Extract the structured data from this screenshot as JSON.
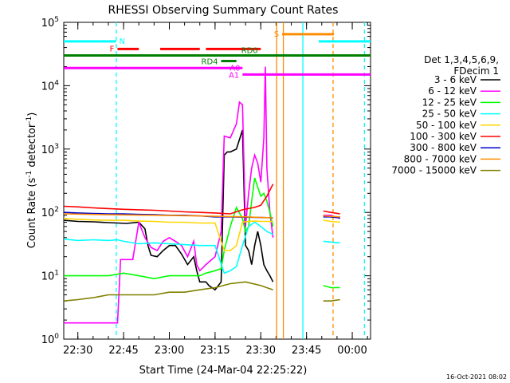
{
  "chart_data": {
    "type": "line",
    "title": "RHESSI Observing Summary Count Rates",
    "xlabel": "Start Time (24-Mar-04 22:25:22)",
    "ylabel_main": "Count Rate (s",
    "ylabel_sup": "-1",
    "ylabel_mid": " detector",
    "ylabel_sup2": "-1",
    "ylabel_end": ")",
    "footer": "16-Oct-2021 08:02",
    "x_ticks": [
      "22:30",
      "22:45",
      "23:00",
      "23:15",
      "23:30",
      "23:45",
      "00:00"
    ],
    "x_tick_minutes": [
      30,
      45,
      60,
      75,
      90,
      105,
      120
    ],
    "xlim_minutes": [
      25.37,
      126
    ],
    "y_scale": "log",
    "ylim": [
      1,
      100000
    ],
    "y_ticks": [
      {
        "base": "10",
        "exp": "0",
        "value": 1
      },
      {
        "base": "10",
        "exp": "1",
        "value": 10
      },
      {
        "base": "10",
        "exp": "2",
        "value": 100
      },
      {
        "base": "10",
        "exp": "3",
        "value": 1000
      },
      {
        "base": "10",
        "exp": "4",
        "value": 10000
      },
      {
        "base": "10",
        "exp": "5",
        "value": 100000
      }
    ],
    "legend": {
      "placement": "right",
      "header": [
        "Det 1,3,4,5,6,9,",
        "FDecim 1"
      ],
      "entries": [
        {
          "label": "3 - 6 keV",
          "color": "#000000"
        },
        {
          "label": "6 - 12 keV",
          "color": "#ff00ff"
        },
        {
          "label": "12 - 25 keV",
          "color": "#00ff00"
        },
        {
          "label": "25 - 50 keV",
          "color": "#00ffff"
        },
        {
          "label": "50 - 100 keV",
          "color": "#ffd700"
        },
        {
          "label": "100 - 300 keV",
          "color": "#ff0000"
        },
        {
          "label": "300 - 800 keV",
          "color": "#0000cd"
        },
        {
          "label": "800 - 7000 keV",
          "color": "#ff8c00"
        },
        {
          "label": "7000 - 15000 keV",
          "color": "#808000"
        }
      ]
    },
    "flag_bars": [
      {
        "label": "N",
        "color": "#00ffff",
        "y": 50000,
        "segments": [
          [
            25.37,
            42.5
          ],
          [
            109,
            126
          ]
        ]
      },
      {
        "label": "F",
        "color": "#ff0000",
        "y": 38000,
        "segments": [
          [
            43,
            50
          ],
          [
            57,
            70
          ],
          [
            72,
            90
          ]
        ]
      },
      {
        "label": "RD0",
        "color": "#008000",
        "y": 30000,
        "segments": [
          [
            25.37,
            126
          ]
        ]
      },
      {
        "label": "RD4",
        "color": "#008000",
        "y": 24500,
        "segments": [
          [
            77,
            82
          ]
        ]
      },
      {
        "label": "A0",
        "color": "#ff00ff",
        "y": 19000,
        "segments": [
          [
            25.37,
            84
          ]
        ]
      },
      {
        "label": "A1",
        "color": "#ff00ff",
        "y": 15000,
        "segments": [
          [
            84,
            126
          ]
        ]
      },
      {
        "label": "S",
        "color": "#ff8c00",
        "y": 65000,
        "segments": [
          [
            97,
            114
          ]
        ]
      }
    ],
    "vlines": [
      {
        "x": 42.6,
        "color": "#00ffff",
        "style": "dashed"
      },
      {
        "x": 95.2,
        "color": "#ff8c00",
        "style": "solid"
      },
      {
        "x": 97.4,
        "color": "#ff8c00",
        "style": "solid"
      },
      {
        "x": 103.8,
        "color": "#00ffff",
        "style": "solid"
      },
      {
        "x": 113.7,
        "color": "#ff8c00",
        "style": "dashed"
      },
      {
        "x": 124,
        "color": "#00ffff",
        "style": "dashed"
      }
    ],
    "series": [
      {
        "name": "3 - 6 keV",
        "color": "#000000",
        "segments": [
          [
            [
              25.4,
              75
            ],
            [
              30,
              72
            ],
            [
              35,
              71
            ],
            [
              40,
              69
            ],
            [
              43,
              68
            ],
            [
              46,
              67
            ],
            [
              50,
              70
            ],
            [
              52,
              55
            ],
            [
              53,
              30
            ],
            [
              54,
              21
            ],
            [
              56,
              20
            ],
            [
              58,
              25
            ],
            [
              60,
              30
            ],
            [
              62,
              30
            ],
            [
              64,
              22
            ],
            [
              66,
              15
            ],
            [
              68,
              20
            ],
            [
              69,
              12
            ],
            [
              70,
              8
            ],
            [
              72,
              8
            ],
            [
              73,
              7
            ],
            [
              75,
              6
            ],
            [
              77,
              8
            ],
            [
              78,
              800
            ],
            [
              79,
              900
            ],
            [
              80,
              900
            ],
            [
              82,
              1000
            ],
            [
              84,
              2000
            ],
            [
              85,
              30
            ],
            [
              86,
              25
            ],
            [
              87,
              15
            ],
            [
              88,
              30
            ],
            [
              89,
              50
            ],
            [
              90,
              30
            ],
            [
              91,
              15
            ],
            [
              92,
              12
            ],
            [
              93,
              10
            ],
            [
              94,
              8
            ]
          ],
          [
            [
              110.5,
              90
            ],
            [
              113,
              85
            ],
            [
              116,
              82
            ]
          ]
        ]
      },
      {
        "name": "6 - 12 keV",
        "color": "#ff00ff",
        "segments": [
          [
            [
              25.4,
              1.8
            ],
            [
              43,
              1.8
            ],
            [
              44,
              18
            ],
            [
              46,
              18
            ],
            [
              48,
              18
            ],
            [
              50,
              70
            ],
            [
              52,
              40
            ],
            [
              54,
              28
            ],
            [
              56,
              25
            ],
            [
              58,
              35
            ],
            [
              60,
              40
            ],
            [
              62,
              35
            ],
            [
              64,
              30
            ],
            [
              66,
              20
            ],
            [
              68,
              35
            ],
            [
              69,
              15
            ],
            [
              70,
              12
            ],
            [
              72,
              15
            ],
            [
              75,
              20
            ],
            [
              77,
              50
            ],
            [
              78,
              1600
            ],
            [
              80,
              1500
            ],
            [
              82,
              2500
            ],
            [
              83,
              5500
            ],
            [
              84,
              5000
            ],
            [
              85,
              60
            ],
            [
              86,
              200
            ],
            [
              87,
              500
            ],
            [
              88,
              800
            ],
            [
              89,
              600
            ],
            [
              90,
              300
            ],
            [
              91,
              1500
            ],
            [
              91.5,
              20000
            ],
            [
              92,
              500
            ],
            [
              93,
              100
            ],
            [
              94,
              40
            ]
          ],
          [
            [
              110.5,
              90
            ],
            [
              113,
              90
            ],
            [
              116,
              80
            ]
          ]
        ]
      },
      {
        "name": "12 - 25 keV",
        "color": "#00ff00",
        "segments": [
          [
            [
              25.4,
              10
            ],
            [
              30,
              10
            ],
            [
              35,
              10
            ],
            [
              40,
              10
            ],
            [
              45,
              11
            ],
            [
              50,
              10
            ],
            [
              55,
              9
            ],
            [
              60,
              10
            ],
            [
              65,
              10
            ],
            [
              70,
              10
            ],
            [
              72,
              11
            ],
            [
              75,
              12
            ],
            [
              77,
              13
            ],
            [
              78,
              25
            ],
            [
              80,
              60
            ],
            [
              82,
              120
            ],
            [
              84,
              80
            ],
            [
              85,
              50
            ],
            [
              86,
              60
            ],
            [
              87,
              150
            ],
            [
              88,
              350
            ],
            [
              89,
              250
            ],
            [
              90,
              180
            ],
            [
              91,
              200
            ],
            [
              92,
              150
            ],
            [
              93,
              100
            ],
            [
              94,
              60
            ]
          ],
          [
            [
              110.5,
              7
            ],
            [
              113,
              6.5
            ],
            [
              116,
              6.5
            ]
          ]
        ]
      },
      {
        "name": "25 - 50 keV",
        "color": "#00ffff",
        "segments": [
          [
            [
              25.4,
              38
            ],
            [
              30,
              36
            ],
            [
              35,
              37
            ],
            [
              40,
              36
            ],
            [
              43,
              37
            ],
            [
              45,
              35
            ],
            [
              50,
              32
            ],
            [
              55,
              33
            ],
            [
              60,
              32
            ],
            [
              65,
              31
            ],
            [
              70,
              30
            ],
            [
              75,
              30
            ],
            [
              78,
              11
            ],
            [
              80,
              12
            ],
            [
              82,
              14
            ],
            [
              84,
              30
            ],
            [
              86,
              60
            ],
            [
              88,
              70
            ],
            [
              90,
              60
            ],
            [
              92,
              50
            ],
            [
              94,
              45
            ]
          ],
          [
            [
              110.5,
              35
            ],
            [
              113,
              34
            ],
            [
              116,
              33
            ]
          ]
        ]
      },
      {
        "name": "50 - 100 keV",
        "color": "#ffd700",
        "segments": [
          [
            [
              25.4,
              80
            ],
            [
              30,
              78
            ],
            [
              35,
              76
            ],
            [
              40,
              75
            ],
            [
              45,
              75
            ],
            [
              50,
              73
            ],
            [
              55,
              72
            ],
            [
              60,
              70
            ],
            [
              65,
              70
            ],
            [
              70,
              68
            ],
            [
              75,
              68
            ],
            [
              78,
              25
            ],
            [
              80,
              25
            ],
            [
              82,
              30
            ],
            [
              84,
              70
            ],
            [
              86,
              72
            ],
            [
              88,
              73
            ],
            [
              90,
              72
            ],
            [
              92,
              72
            ],
            [
              94,
              72
            ]
          ],
          [
            [
              110.5,
              75
            ],
            [
              113,
              72
            ],
            [
              116,
              70
            ]
          ]
        ]
      },
      {
        "name": "100 - 300 keV",
        "color": "#ff0000",
        "segments": [
          [
            [
              25.4,
              125
            ],
            [
              30,
              122
            ],
            [
              35,
              118
            ],
            [
              40,
              115
            ],
            [
              45,
              112
            ],
            [
              50,
              110
            ],
            [
              55,
              108
            ],
            [
              60,
              105
            ],
            [
              65,
              102
            ],
            [
              70,
              100
            ],
            [
              75,
              98
            ],
            [
              80,
              95
            ],
            [
              84,
              110
            ],
            [
              86,
              115
            ],
            [
              88,
              120
            ],
            [
              90,
              130
            ],
            [
              92,
              180
            ],
            [
              94,
              280
            ]
          ],
          [
            [
              110.5,
              105
            ],
            [
              113,
              100
            ],
            [
              116,
              95
            ]
          ]
        ]
      },
      {
        "name": "300 - 800 keV",
        "color": "#0000cd",
        "segments": [
          [
            [
              25.4,
              100
            ],
            [
              30,
              98
            ],
            [
              35,
              96
            ],
            [
              40,
              95
            ],
            [
              45,
              95
            ],
            [
              50,
              93
            ],
            [
              55,
              92
            ],
            [
              60,
              90
            ],
            [
              65,
              90
            ],
            [
              70,
              88
            ],
            [
              75,
              85
            ],
            [
              80,
              85
            ],
            [
              85,
              84
            ],
            [
              90,
              83
            ],
            [
              94,
              82
            ]
          ],
          [
            [
              110.5,
              85
            ],
            [
              113,
              85
            ],
            [
              116,
              82
            ]
          ]
        ]
      },
      {
        "name": "800 - 7000 keV",
        "color": "#ff8c00",
        "segments": [
          [
            [
              25.4,
              95
            ],
            [
              40,
              92
            ],
            [
              55,
              90
            ],
            [
              70,
              88
            ],
            [
              85,
              85
            ],
            [
              94,
              82
            ]
          ],
          [
            [
              110.5,
              88
            ],
            [
              116,
              85
            ]
          ]
        ]
      },
      {
        "name": "7000 - 15000 keV",
        "color": "#808000",
        "segments": [
          [
            [
              25.4,
              4
            ],
            [
              30,
              4.2
            ],
            [
              35,
              4.5
            ],
            [
              40,
              5
            ],
            [
              45,
              5
            ],
            [
              50,
              5
            ],
            [
              55,
              5
            ],
            [
              60,
              5.5
            ],
            [
              65,
              5.5
            ],
            [
              70,
              6
            ],
            [
              75,
              6.5
            ],
            [
              80,
              7.5
            ],
            [
              85,
              8
            ],
            [
              90,
              7
            ],
            [
              94,
              6
            ]
          ],
          [
            [
              110.5,
              4
            ],
            [
              113,
              4
            ],
            [
              116,
              4.2
            ]
          ]
        ]
      }
    ]
  }
}
